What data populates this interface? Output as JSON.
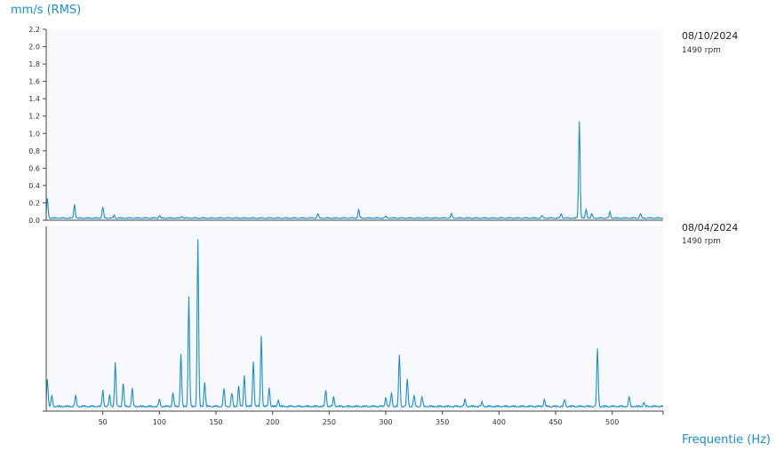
{
  "header": {
    "y_unit": "mm/s (RMS)",
    "x_title": "Frequentie (Hz)"
  },
  "colors": {
    "accent": "#1a8ed1",
    "plot_bg": "#f6f8fb",
    "axis": "#444444"
  },
  "chart_data": [
    {
      "type": "line",
      "panel": "top",
      "date": "08/10/2024",
      "rpm": "1490 rpm",
      "xlim": [
        0,
        545
      ],
      "ylim": [
        0,
        2.2
      ],
      "yticks": [
        "0.0",
        "0.2",
        "0.4",
        "0.6",
        "0.8",
        "1.0",
        "1.2",
        "1.4",
        "1.6",
        "1.8",
        "2.0",
        "2.2"
      ],
      "series": [
        {
          "baseline": 0.02,
          "peaks": [
            [
              1,
              0.22
            ],
            [
              25,
              0.16
            ],
            [
              50,
              0.13
            ],
            [
              60,
              0.03
            ],
            [
              100,
              0.03
            ],
            [
              120,
              0.02
            ],
            [
              240,
              0.05
            ],
            [
              276,
              0.1
            ],
            [
              300,
              0.02
            ],
            [
              358,
              0.05
            ],
            [
              438,
              0.03
            ],
            [
              455,
              0.05
            ],
            [
              471,
              1.12
            ],
            [
              477,
              0.1
            ],
            [
              482,
              0.05
            ],
            [
              498,
              0.07
            ],
            [
              525,
              0.05
            ]
          ]
        }
      ]
    },
    {
      "type": "line",
      "panel": "bottom",
      "date": "08/04/2024",
      "rpm": "1490 rpm",
      "xlim": [
        0,
        545
      ],
      "xticks": [
        "50",
        "100",
        "150",
        "200",
        "250",
        "300",
        "350",
        "400",
        "450",
        "500"
      ],
      "series": [
        {
          "baseline": 0.03,
          "peaks": [
            [
              1,
              0.2
            ],
            [
              5,
              0.08
            ],
            [
              26,
              0.08
            ],
            [
              50,
              0.12
            ],
            [
              56,
              0.08
            ],
            [
              61,
              0.32
            ],
            [
              68,
              0.17
            ],
            [
              76,
              0.13
            ],
            [
              100,
              0.05
            ],
            [
              112,
              0.1
            ],
            [
              119,
              0.38
            ],
            [
              126,
              0.8
            ],
            [
              134,
              1.22
            ],
            [
              140,
              0.18
            ],
            [
              157,
              0.13
            ],
            [
              164,
              0.1
            ],
            [
              170,
              0.15
            ],
            [
              175,
              0.23
            ],
            [
              183,
              0.33
            ],
            [
              190,
              0.52
            ],
            [
              197,
              0.14
            ],
            [
              205,
              0.05
            ],
            [
              247,
              0.12
            ],
            [
              254,
              0.07
            ],
            [
              300,
              0.07
            ],
            [
              305,
              0.1
            ],
            [
              312,
              0.38
            ],
            [
              319,
              0.2
            ],
            [
              325,
              0.08
            ],
            [
              332,
              0.07
            ],
            [
              370,
              0.05
            ],
            [
              385,
              0.03
            ],
            [
              440,
              0.05
            ],
            [
              458,
              0.05
            ],
            [
              487,
              0.42
            ],
            [
              515,
              0.07
            ],
            [
              528,
              0.03
            ]
          ]
        }
      ]
    }
  ]
}
